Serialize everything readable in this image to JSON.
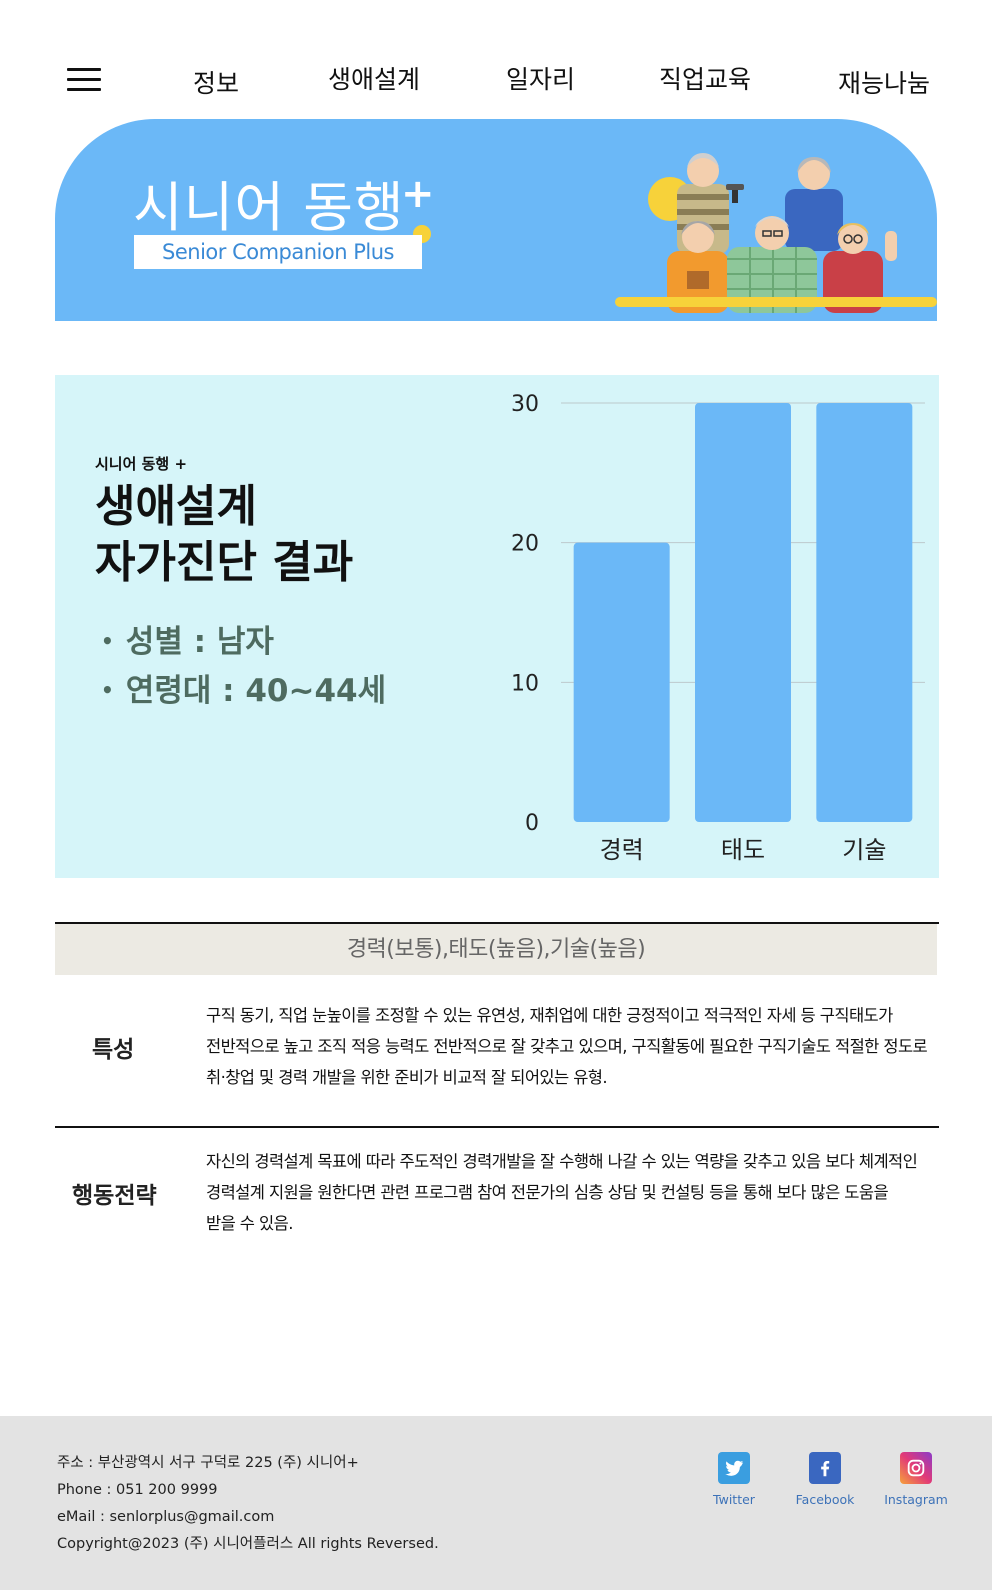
{
  "nav": {
    "items": [
      {
        "label": "정보"
      },
      {
        "label": "생애설계"
      },
      {
        "label": "일자리"
      },
      {
        "label": "직업교육"
      },
      {
        "label": "재능나눔"
      }
    ]
  },
  "banner": {
    "title": "시니어 동행",
    "plus": "+",
    "subtitle": "Senior Companion Plus"
  },
  "result": {
    "kicker": "시니어 동행 +",
    "headline_line1": "생애설계",
    "headline_line2": "자가진단 결과",
    "gender": "성별 : 남자",
    "age": "연령대 : 40~44세"
  },
  "chart_data": {
    "type": "bar",
    "categories": [
      "경력",
      "태도",
      "기술"
    ],
    "values": [
      20,
      30,
      30
    ],
    "ylim": [
      0,
      30
    ],
    "yticks": [
      0,
      10,
      20,
      30
    ],
    "title": "",
    "xlabel": "",
    "ylabel": "",
    "grid": true,
    "bar_color": "#6bb8f7"
  },
  "summary": {
    "headline": "경력(보통),태도(높음),기술(높음)",
    "rows": [
      {
        "label": "특성",
        "lines": [
          "구직 동기, 직업 눈높이를 조정할 수 있는 유연성, 재취업에 대한 긍정적이고 적극적인 자세  등 구직태도가",
          "전반적으로 높고 조직 적응 능력도 전반적으로 잘 갖추고 있으며, 구직활동에 필요한 구직기술도 적절한 정도로",
          "취·창업 및 경력 개발을 위한 준비가 비교적 잘 되어있는 유형."
        ]
      },
      {
        "label": "행동전략",
        "lines": [
          "자신의 경력설계 목표에 따라 주도적인 경력개발을 잘 수행해 나갈 수 있는 역량을 갖추고 있음 보다 체계적인",
          "경력설계 지원을 원한다면 관련 프로그램 참여 전문가의 심층 상담 및 컨설팅 등을 통해 보다 많은 도움을",
          "받을 수 있음."
        ]
      }
    ]
  },
  "footer": {
    "address": "주소 : 부산광역시 서구 구덕로 225 (주) 시니어+",
    "phone": "Phone : 051 200 9999",
    "email": "eMail : senlorplus@gmail.com",
    "copyright": "Copyright@2023 (주) 시니어플러스 All rights Reversed.",
    "social": [
      {
        "label": "Twitter",
        "icon": "twitter-icon"
      },
      {
        "label": "Facebook",
        "icon": "facebook-icon"
      },
      {
        "label": "Instagram",
        "icon": "instagram-icon"
      }
    ]
  },
  "colors": {
    "banner_bg": "#6bb8f7",
    "panel_bg": "#d6f5f9",
    "summary_bar_bg": "#eceae3",
    "footer_bg": "#e3e3e3",
    "accent_yellow": "#f7d23a"
  }
}
